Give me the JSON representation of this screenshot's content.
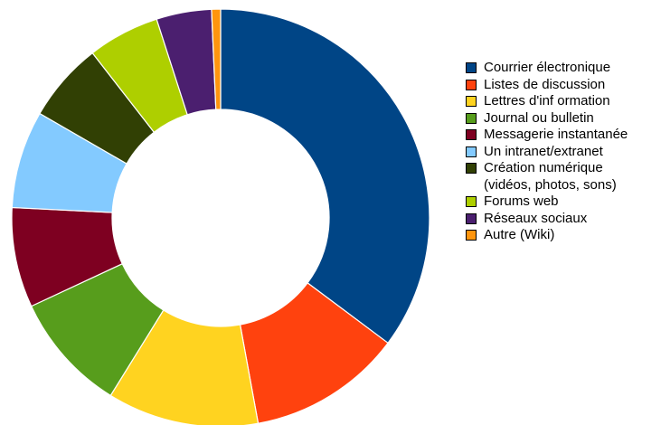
{
  "chart_data": {
    "type": "donut",
    "title": "",
    "start": "top, clockwise",
    "legend": "right",
    "series": [
      {
        "name": "Courrier électronique",
        "value": 35.5,
        "color": "#004586"
      },
      {
        "name": "Listes de discussion",
        "value": 12.0,
        "color": "#ff420e"
      },
      {
        "name": "Lettres d'inf ormation",
        "value": 11.8,
        "color": "#ffd320"
      },
      {
        "name": "Journal ou bulletin",
        "value": 9.3,
        "color": "#579d1c"
      },
      {
        "name": "Messagerie instantanée",
        "value": 7.8,
        "color": "#7e0021"
      },
      {
        "name": "Un intranet/extranet",
        "value": 7.6,
        "color": "#83caff"
      },
      {
        "name": "Création numérique\n(vidéos, photos, sons)",
        "value": 6.2,
        "color": "#314004"
      },
      {
        "name": "Forums web",
        "value": 5.6,
        "color": "#aecf00"
      },
      {
        "name": "Réseaux sociaux",
        "value": 4.3,
        "color": "#4b1f6f"
      },
      {
        "name": "Autre (Wiki)",
        "value": 0.7,
        "color": "#ff950e"
      }
    ]
  }
}
